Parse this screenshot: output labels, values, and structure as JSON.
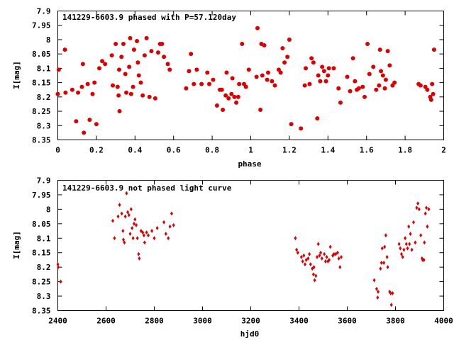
{
  "chart_data": [
    {
      "type": "scatter",
      "title": "141229-6603.9 phased with P=57.120day",
      "xlabel": "phase",
      "ylabel": "I[mag]",
      "xlim": [
        0,
        2
      ],
      "ylim": [
        8.35,
        7.9
      ],
      "y_inverted": true,
      "xticks": [
        0,
        0.2,
        0.4,
        0.6,
        0.8,
        1,
        1.2,
        1.4,
        1.6,
        1.8,
        2
      ],
      "xtick_labels": [
        "0",
        "0.2",
        "0.4",
        "0.6",
        "0.8",
        "1",
        "1.2",
        "1.4",
        "1.6",
        "1.8",
        "2"
      ],
      "yticks": [
        7.9,
        7.95,
        8,
        8.05,
        8.1,
        8.15,
        8.2,
        8.25,
        8.3,
        8.35
      ],
      "ytick_labels": [
        "7.9",
        "7.95",
        "8",
        "8.05",
        "8.1",
        "8.15",
        "8.2",
        "8.25",
        "8.3",
        "8.35"
      ],
      "grid": false,
      "marker_color": "#dd0000",
      "marker": "filled-circle",
      "points": [
        [
          0.0,
          8.19
        ],
        [
          0.005,
          8.105
        ],
        [
          0.037,
          8.035
        ],
        [
          0.04,
          8.185
        ],
        [
          0.075,
          8.175
        ],
        [
          0.095,
          8.285
        ],
        [
          0.105,
          8.185
        ],
        [
          0.125,
          8.165
        ],
        [
          0.13,
          8.085
        ],
        [
          0.135,
          8.325
        ],
        [
          0.155,
          8.155
        ],
        [
          0.165,
          8.28
        ],
        [
          0.18,
          8.19
        ],
        [
          0.19,
          8.15
        ],
        [
          0.2,
          8.295
        ],
        [
          0.215,
          8.1
        ],
        [
          0.23,
          8.075
        ],
        [
          0.245,
          8.085
        ],
        [
          0.28,
          8.055
        ],
        [
          0.285,
          8.16
        ],
        [
          0.3,
          8.015
        ],
        [
          0.31,
          8.165
        ],
        [
          0.315,
          8.195
        ],
        [
          0.318,
          8.105
        ],
        [
          0.32,
          8.25
        ],
        [
          0.33,
          8.06
        ],
        [
          0.34,
          8.015
        ],
        [
          0.35,
          8.12
        ],
        [
          0.355,
          8.185
        ],
        [
          0.37,
          8.095
        ],
        [
          0.375,
          7.995
        ],
        [
          0.38,
          8.19
        ],
        [
          0.39,
          8.165
        ],
        [
          0.395,
          8.035
        ],
        [
          0.41,
          8.005
        ],
        [
          0.415,
          8.08
        ],
        [
          0.42,
          8.125
        ],
        [
          0.43,
          8.15
        ],
        [
          0.44,
          8.195
        ],
        [
          0.45,
          8.055
        ],
        [
          0.46,
          7.995
        ],
        [
          0.475,
          8.2
        ],
        [
          0.485,
          8.04
        ],
        [
          0.505,
          8.205
        ],
        [
          0.52,
          8.045
        ],
        [
          0.53,
          8.015
        ],
        [
          0.54,
          8.015
        ],
        [
          0.55,
          8.06
        ],
        [
          0.57,
          8.085
        ],
        [
          0.58,
          8.105
        ],
        [
          0.665,
          8.17
        ],
        [
          0.68,
          8.11
        ],
        [
          0.69,
          8.05
        ],
        [
          0.705,
          8.155
        ],
        [
          0.72,
          8.105
        ],
        [
          0.745,
          8.155
        ],
        [
          0.775,
          8.115
        ],
        [
          0.785,
          8.155
        ],
        [
          0.805,
          8.14
        ],
        [
          0.825,
          8.23
        ],
        [
          0.84,
          8.175
        ],
        [
          0.85,
          8.175
        ],
        [
          0.855,
          8.245
        ],
        [
          0.87,
          8.195
        ],
        [
          0.875,
          8.115
        ],
        [
          0.885,
          8.205
        ],
        [
          0.9,
          8.19
        ],
        [
          0.905,
          8.135
        ],
        [
          0.915,
          8.2
        ],
        [
          0.925,
          8.22
        ],
        [
          0.935,
          8.2
        ],
        [
          0.94,
          8.155
        ],
        [
          0.955,
          8.015
        ],
        [
          0.965,
          8.155
        ],
        [
          0.975,
          8.165
        ],
        [
          0.99,
          8.105
        ],
        [
          1.03,
          8.13
        ],
        [
          1.035,
          7.96
        ],
        [
          1.05,
          8.245
        ],
        [
          1.055,
          8.015
        ],
        [
          1.06,
          8.125
        ],
        [
          1.07,
          8.02
        ],
        [
          1.085,
          8.14
        ],
        [
          1.09,
          8.115
        ],
        [
          1.11,
          8.145
        ],
        [
          1.125,
          8.16
        ],
        [
          1.145,
          8.105
        ],
        [
          1.155,
          8.115
        ],
        [
          1.165,
          8.03
        ],
        [
          1.175,
          8.08
        ],
        [
          1.19,
          8.06
        ],
        [
          1.2,
          8.0
        ],
        [
          1.21,
          8.295
        ],
        [
          1.26,
          8.31
        ],
        [
          1.28,
          8.16
        ],
        [
          1.285,
          8.1
        ],
        [
          1.305,
          8.155
        ],
        [
          1.315,
          8.065
        ],
        [
          1.325,
          8.08
        ],
        [
          1.345,
          8.275
        ],
        [
          1.35,
          8.125
        ],
        [
          1.36,
          8.145
        ],
        [
          1.37,
          8.095
        ],
        [
          1.38,
          8.11
        ],
        [
          1.39,
          8.145
        ],
        [
          1.4,
          8.125
        ],
        [
          1.405,
          8.1
        ],
        [
          1.43,
          8.1
        ],
        [
          1.455,
          8.17
        ],
        [
          1.465,
          8.22
        ],
        [
          1.5,
          8.13
        ],
        [
          1.515,
          8.18
        ],
        [
          1.53,
          8.065
        ],
        [
          1.54,
          8.145
        ],
        [
          1.55,
          8.175
        ],
        [
          1.56,
          8.17
        ],
        [
          1.58,
          8.165
        ],
        [
          1.59,
          8.2
        ],
        [
          1.605,
          8.015
        ],
        [
          1.615,
          8.12
        ],
        [
          1.635,
          8.095
        ],
        [
          1.65,
          8.175
        ],
        [
          1.665,
          8.16
        ],
        [
          1.67,
          8.035
        ],
        [
          1.675,
          8.11
        ],
        [
          1.685,
          8.125
        ],
        [
          1.695,
          8.17
        ],
        [
          1.7,
          8.14
        ],
        [
          1.71,
          8.04
        ],
        [
          1.72,
          8.09
        ],
        [
          1.735,
          8.16
        ],
        [
          1.745,
          8.15
        ],
        [
          1.87,
          8.155
        ],
        [
          1.88,
          8.16
        ],
        [
          1.905,
          8.165
        ],
        [
          1.915,
          8.175
        ],
        [
          1.93,
          8.2
        ],
        [
          1.935,
          8.21
        ],
        [
          1.94,
          8.155
        ],
        [
          1.945,
          8.19
        ],
        [
          1.95,
          8.035
        ]
      ]
    },
    {
      "type": "scatter",
      "title": "141229-6603.9 not phased light curve",
      "xlabel": "hjd0",
      "ylabel": "I[mag]",
      "xlim": [
        2400,
        4000
      ],
      "ylim": [
        8.35,
        7.9
      ],
      "y_inverted": true,
      "xticks": [
        2400,
        2600,
        2800,
        3000,
        3200,
        3400,
        3600,
        3800,
        4000
      ],
      "xtick_labels": [
        "2400",
        "2600",
        "2800",
        "3000",
        "3200",
        "3400",
        "3600",
        "3800",
        "4000"
      ],
      "yticks": [
        7.9,
        7.95,
        8,
        8.05,
        8.1,
        8.15,
        8.2,
        8.25,
        8.3,
        8.35
      ],
      "ytick_labels": [
        "7.9",
        "7.95",
        "8",
        "8.05",
        "8.1",
        "8.15",
        "8.2",
        "8.25",
        "8.3",
        "8.35"
      ],
      "grid": false,
      "marker_color": "#dd0000",
      "marker": "filled-diamond",
      "points": [
        [
          2400,
          8.19
        ],
        [
          2402,
          8.2
        ],
        [
          2412,
          8.25
        ],
        [
          2628,
          8.04
        ],
        [
          2635,
          8.1
        ],
        [
          2650,
          8.025
        ],
        [
          2656,
          7.985
        ],
        [
          2665,
          8.015
        ],
        [
          2670,
          8.075
        ],
        [
          2672,
          8.105
        ],
        [
          2676,
          8.115
        ],
        [
          2680,
          8.025
        ],
        [
          2685,
          7.945
        ],
        [
          2690,
          8.01
        ],
        [
          2695,
          8.02
        ],
        [
          2700,
          8.085
        ],
        [
          2704,
          8.0
        ],
        [
          2708,
          8.065
        ],
        [
          2712,
          8.1
        ],
        [
          2716,
          8.05
        ],
        [
          2720,
          8.035
        ],
        [
          2725,
          8.055
        ],
        [
          2730,
          8.1
        ],
        [
          2735,
          8.155
        ],
        [
          2738,
          8.17
        ],
        [
          2745,
          8.075
        ],
        [
          2752,
          8.08
        ],
        [
          2757,
          8.09
        ],
        [
          2760,
          8.115
        ],
        [
          2768,
          8.08
        ],
        [
          2775,
          8.09
        ],
        [
          2790,
          8.075
        ],
        [
          2800,
          8.1
        ],
        [
          2812,
          8.065
        ],
        [
          2840,
          8.045
        ],
        [
          2848,
          8.085
        ],
        [
          2858,
          8.1
        ],
        [
          2865,
          8.06
        ],
        [
          2872,
          8.015
        ],
        [
          2880,
          8.055
        ],
        [
          3385,
          8.1
        ],
        [
          3390,
          8.14
        ],
        [
          3395,
          8.15
        ],
        [
          3410,
          8.165
        ],
        [
          3415,
          8.18
        ],
        [
          3420,
          8.16
        ],
        [
          3425,
          8.19
        ],
        [
          3430,
          8.175
        ],
        [
          3438,
          8.17
        ],
        [
          3443,
          8.155
        ],
        [
          3448,
          8.19
        ],
        [
          3455,
          8.205
        ],
        [
          3460,
          8.225
        ],
        [
          3462,
          8.2
        ],
        [
          3465,
          8.245
        ],
        [
          3470,
          8.23
        ],
        [
          3475,
          8.165
        ],
        [
          3480,
          8.12
        ],
        [
          3485,
          8.16
        ],
        [
          3490,
          8.15
        ],
        [
          3495,
          8.17
        ],
        [
          3505,
          8.155
        ],
        [
          3510,
          8.18
        ],
        [
          3515,
          8.165
        ],
        [
          3520,
          8.18
        ],
        [
          3525,
          8.175
        ],
        [
          3530,
          8.13
        ],
        [
          3540,
          8.16
        ],
        [
          3545,
          8.155
        ],
        [
          3552,
          8.155
        ],
        [
          3560,
          8.15
        ],
        [
          3565,
          8.17
        ],
        [
          3570,
          8.2
        ],
        [
          3575,
          8.165
        ],
        [
          3712,
          8.245
        ],
        [
          3722,
          8.275
        ],
        [
          3726,
          8.305
        ],
        [
          3728,
          8.285
        ],
        [
          3738,
          8.205
        ],
        [
          3742,
          8.185
        ],
        [
          3745,
          8.135
        ],
        [
          3752,
          8.185
        ],
        [
          3755,
          8.13
        ],
        [
          3760,
          8.09
        ],
        [
          3765,
          8.165
        ],
        [
          3768,
          8.2
        ],
        [
          3776,
          8.285
        ],
        [
          3780,
          8.29
        ],
        [
          3783,
          8.33
        ],
        [
          3788,
          8.29
        ],
        [
          3815,
          8.12
        ],
        [
          3820,
          8.135
        ],
        [
          3825,
          8.155
        ],
        [
          3830,
          8.165
        ],
        [
          3835,
          8.14
        ],
        [
          3840,
          8.1
        ],
        [
          3845,
          8.12
        ],
        [
          3850,
          8.135
        ],
        [
          3855,
          8.06
        ],
        [
          3858,
          8.12
        ],
        [
          3862,
          8.085
        ],
        [
          3868,
          8.14
        ],
        [
          3875,
          8.045
        ],
        [
          3882,
          8.115
        ],
        [
          3888,
          7.995
        ],
        [
          3893,
          7.98
        ],
        [
          3898,
          8.0
        ],
        [
          3905,
          8.09
        ],
        [
          3910,
          8.17
        ],
        [
          3913,
          8.175
        ],
        [
          3918,
          8.175
        ],
        [
          3920,
          8.115
        ],
        [
          3924,
          8.015
        ],
        [
          3928,
          7.995
        ],
        [
          3932,
          8.06
        ],
        [
          3938,
          8.0
        ]
      ]
    }
  ]
}
